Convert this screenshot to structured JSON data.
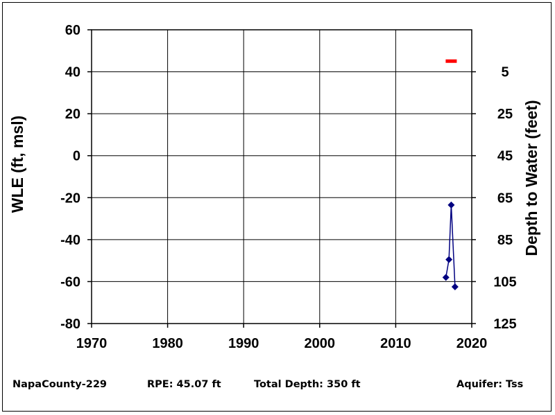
{
  "chart_data": {
    "type": "line",
    "xlim": [
      1970,
      2020
    ],
    "ylim": [
      -80,
      60
    ],
    "y2lim": [
      125,
      -15
    ],
    "x_ticks": [
      "1970",
      "1980",
      "1990",
      "2000",
      "2010",
      "2020"
    ],
    "y_ticks": [
      "60",
      "40",
      "20",
      "0",
      "-20",
      "-40",
      "-60",
      "-80"
    ],
    "y2_ticks": [
      "5",
      "25",
      "45",
      "65",
      "85",
      "105",
      "125"
    ],
    "ylabel": "WLE (ft, msl)",
    "y2label": "Depth to Water (feet)",
    "grid": true,
    "series": [
      {
        "x": [
          2016.6,
          2017.0,
          2017.3,
          2017.8
        ],
        "y": [
          -58,
          -49.5,
          -23.5,
          -62.5
        ],
        "color": "#000080",
        "marker": "diamond"
      }
    ],
    "rpe_marker": {
      "x": 2017.3,
      "y": 45.07,
      "color": "#ff0000"
    }
  },
  "footer": {
    "well": "NapaCounty-229",
    "rpe": "RPE: 45.07 ft",
    "depth": "Total Depth: 350 ft",
    "aquifer": "Aquifer: Tss"
  }
}
